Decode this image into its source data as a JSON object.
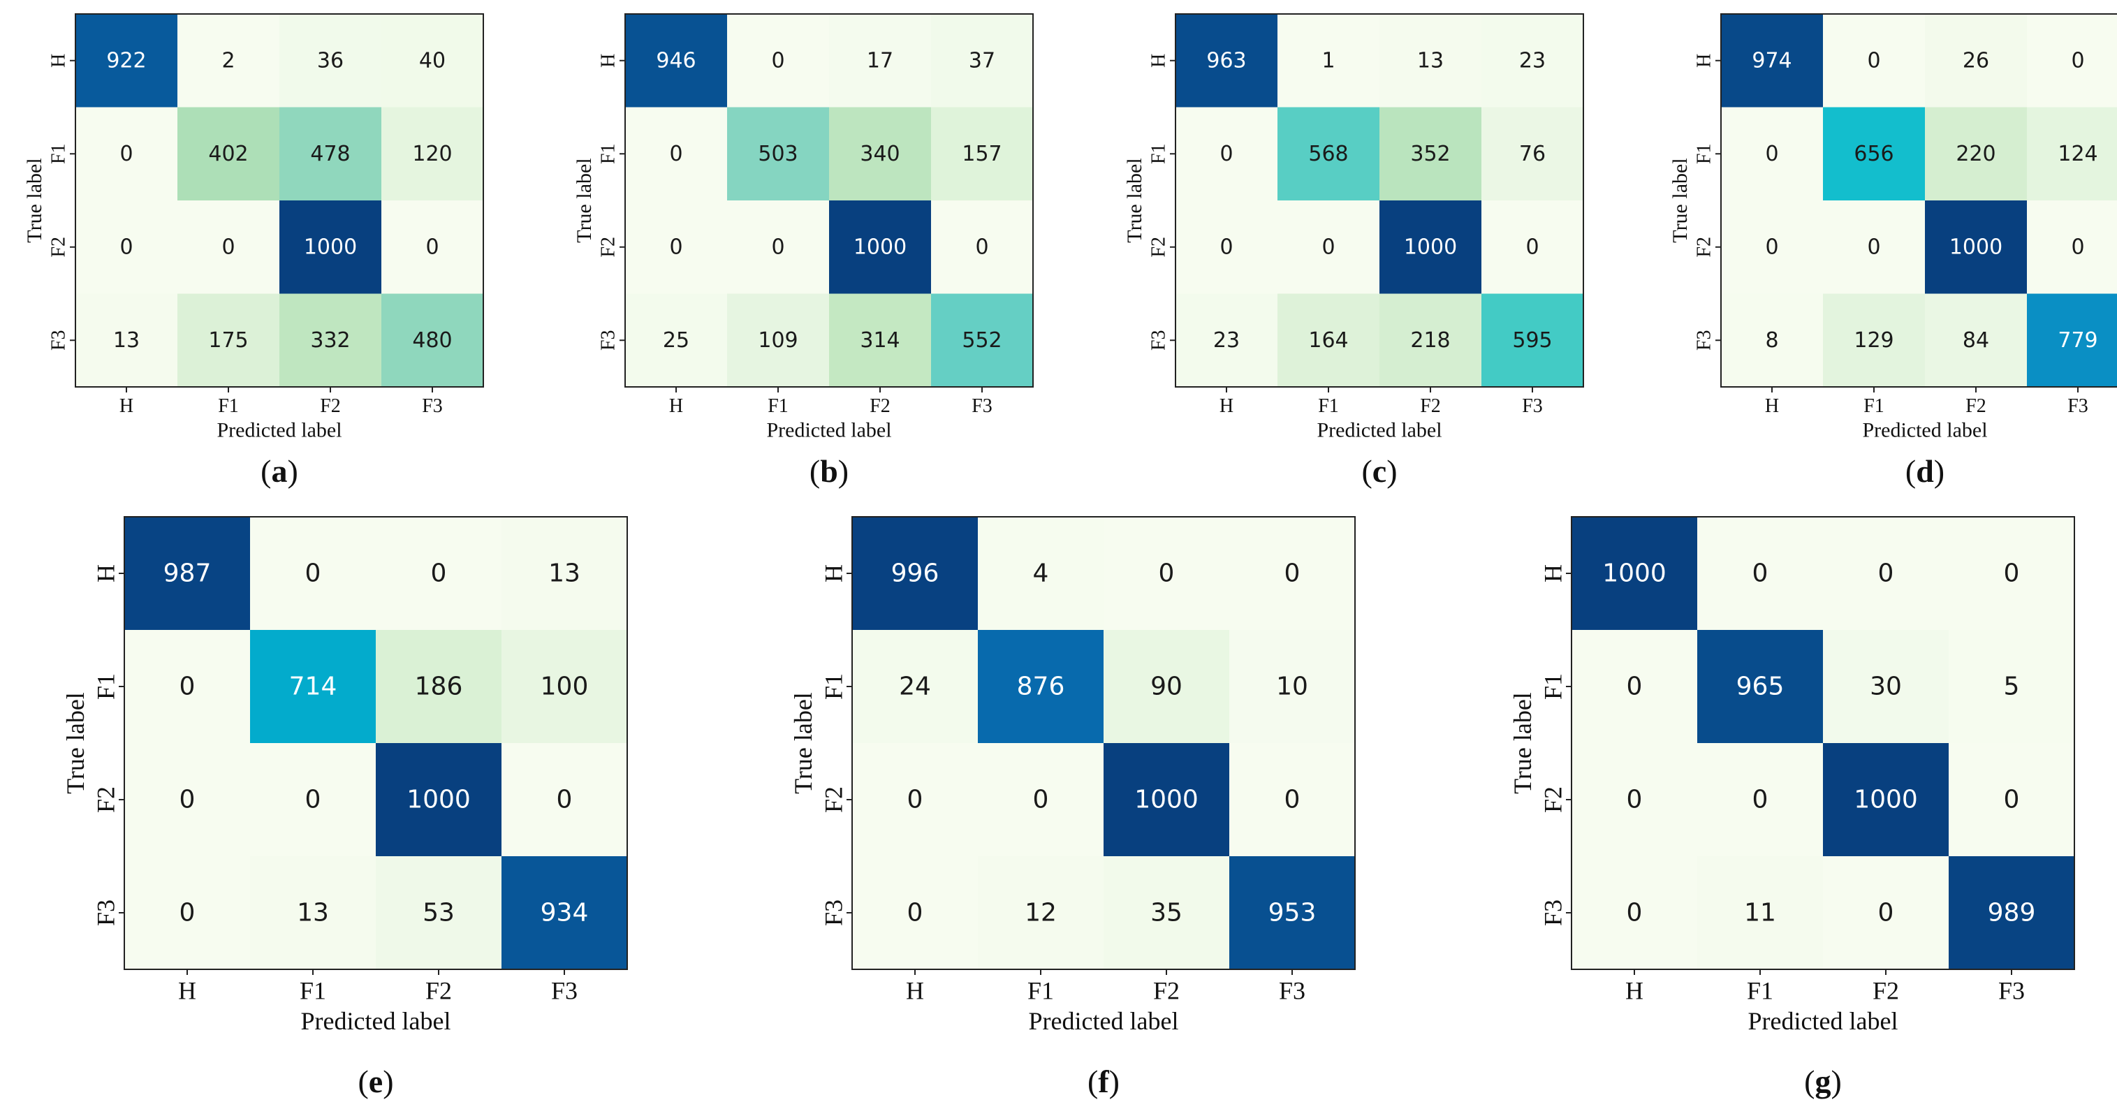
{
  "figure": {
    "colormap": {
      "stops": [
        [
          0.0,
          "#f7fcf0"
        ],
        [
          0.15,
          "#e0f3db"
        ],
        [
          0.3,
          "#c8e9c4"
        ],
        [
          0.42,
          "#a8ddb5"
        ],
        [
          0.52,
          "#7ed3c3"
        ],
        [
          0.6,
          "#3fcac5"
        ],
        [
          0.68,
          "#00b9d0"
        ],
        [
          0.78,
          "#0a8fc4"
        ],
        [
          0.88,
          "#0868ac"
        ],
        [
          1.0,
          "#08407f"
        ]
      ],
      "vmin": 0,
      "vmax": 1000,
      "light_text_color": "#ffffff",
      "dark_text_color": "#1a1a1a",
      "frame_color": "#222222"
    }
  },
  "chart_data": [
    {
      "type": "heatmap",
      "panel_label": "a",
      "xlabel": "Predicted label",
      "ylabel": "True label",
      "x_ticks": [
        "H",
        "F1",
        "F2",
        "F3"
      ],
      "y_ticks": [
        "H",
        "F1",
        "F2",
        "F3"
      ],
      "matrix": [
        [
          922,
          2,
          36,
          40
        ],
        [
          0,
          402,
          478,
          120
        ],
        [
          0,
          0,
          1000,
          0
        ],
        [
          13,
          175,
          332,
          480
        ]
      ]
    },
    {
      "type": "heatmap",
      "panel_label": "b",
      "xlabel": "Predicted label",
      "ylabel": "True label",
      "x_ticks": [
        "H",
        "F1",
        "F2",
        "F3"
      ],
      "y_ticks": [
        "H",
        "F1",
        "F2",
        "F3"
      ],
      "matrix": [
        [
          946,
          0,
          17,
          37
        ],
        [
          0,
          503,
          340,
          157
        ],
        [
          0,
          0,
          1000,
          0
        ],
        [
          25,
          109,
          314,
          552
        ]
      ]
    },
    {
      "type": "heatmap",
      "panel_label": "c",
      "xlabel": "Predicted label",
      "ylabel": "True label",
      "x_ticks": [
        "H",
        "F1",
        "F2",
        "F3"
      ],
      "y_ticks": [
        "H",
        "F1",
        "F2",
        "F3"
      ],
      "matrix": [
        [
          963,
          1,
          13,
          23
        ],
        [
          0,
          568,
          352,
          76
        ],
        [
          0,
          0,
          1000,
          0
        ],
        [
          23,
          164,
          218,
          595
        ]
      ]
    },
    {
      "type": "heatmap",
      "panel_label": "d",
      "xlabel": "Predicted label",
      "ylabel": "True label",
      "x_ticks": [
        "H",
        "F1",
        "F2",
        "F3"
      ],
      "y_ticks": [
        "H",
        "F1",
        "F2",
        "F3"
      ],
      "matrix": [
        [
          974,
          0,
          26,
          0
        ],
        [
          0,
          656,
          220,
          124
        ],
        [
          0,
          0,
          1000,
          0
        ],
        [
          8,
          129,
          84,
          779
        ]
      ]
    },
    {
      "type": "heatmap",
      "panel_label": "e",
      "xlabel": "Predicted label",
      "ylabel": "True label",
      "x_ticks": [
        "H",
        "F1",
        "F2",
        "F3"
      ],
      "y_ticks": [
        "H",
        "F1",
        "F2",
        "F3"
      ],
      "matrix": [
        [
          987,
          0,
          0,
          13
        ],
        [
          0,
          714,
          186,
          100
        ],
        [
          0,
          0,
          1000,
          0
        ],
        [
          0,
          13,
          53,
          934
        ]
      ]
    },
    {
      "type": "heatmap",
      "panel_label": "f",
      "xlabel": "Predicted label",
      "ylabel": "True label",
      "x_ticks": [
        "H",
        "F1",
        "F2",
        "F3"
      ],
      "y_ticks": [
        "H",
        "F1",
        "F2",
        "F3"
      ],
      "matrix": [
        [
          996,
          4,
          0,
          0
        ],
        [
          24,
          876,
          90,
          10
        ],
        [
          0,
          0,
          1000,
          0
        ],
        [
          0,
          12,
          35,
          953
        ]
      ]
    },
    {
      "type": "heatmap",
      "panel_label": "g",
      "xlabel": "Predicted label",
      "ylabel": "True label",
      "x_ticks": [
        "H",
        "F1",
        "F2",
        "F3"
      ],
      "y_ticks": [
        "H",
        "F1",
        "F2",
        "F3"
      ],
      "matrix": [
        [
          1000,
          0,
          0,
          0
        ],
        [
          0,
          965,
          30,
          5
        ],
        [
          0,
          0,
          1000,
          0
        ],
        [
          0,
          11,
          0,
          989
        ]
      ]
    }
  ]
}
